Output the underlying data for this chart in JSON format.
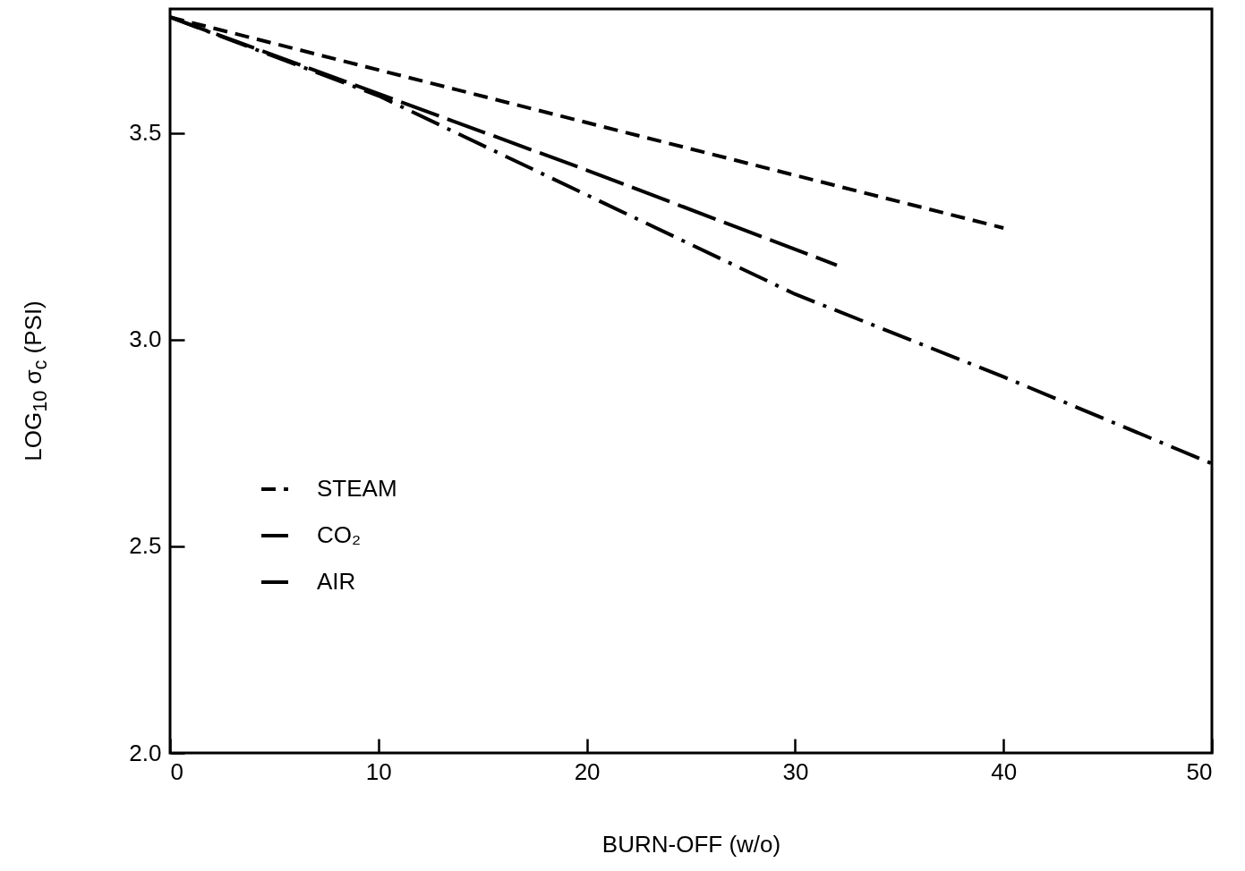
{
  "chart_data": {
    "type": "line",
    "xlabel": "BURN-OFF (w/o)",
    "ylabel": "LOG$_{10}$ σ$_{c}$ (PSI)",
    "xlim": [
      0,
      50
    ],
    "xticks": [
      0,
      10,
      20,
      30,
      40,
      50
    ],
    "ylim": [
      2.0,
      3.8
    ],
    "yticks": [
      {
        "value": 2,
        "label": "2.0"
      },
      3.5,
      {
        "value": 3,
        "label": "3.0"
      },
      2.5
    ],
    "grid": false,
    "legend": "left",
    "marker": "none",
    "series": [
      {
        "name": "STEAM",
        "color": "#000000",
        "line_style": "dashed",
        "x": [
          0,
          40
        ],
        "values": [
          3.78,
          3.27
        ]
      },
      {
        "name": "CO₂",
        "color": "#000000",
        "line_style": "dashdot",
        "x": [
          0,
          10,
          20,
          30,
          40,
          50
        ],
        "values": [
          3.78,
          3.59,
          3.35,
          3.11,
          2.91,
          2.7
        ]
      },
      {
        "name": "AIR",
        "color": "#000000",
        "line_style": "longdash",
        "x": [
          0,
          20,
          32
        ],
        "values": [
          3.78,
          3.41,
          3.18
        ]
      }
    ]
  }
}
